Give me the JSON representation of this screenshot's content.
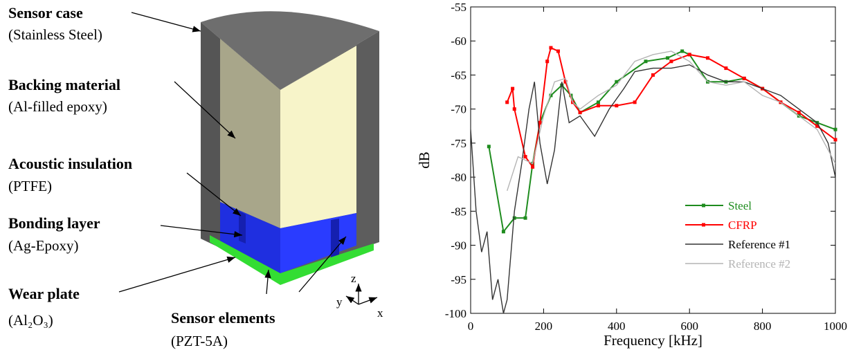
{
  "diagram": {
    "labels": [
      {
        "title": "Sensor case",
        "material": "(Stainless Steel)"
      },
      {
        "title": "Backing material",
        "material": "(Al-filled epoxy)"
      },
      {
        "title": "Acoustic insulation",
        "material": "(PTFE)"
      },
      {
        "title": "Bonding layer",
        "material": "(Ag-Epoxy)"
      },
      {
        "title": "Wear plate",
        "material": "(Al₂O₃)"
      },
      {
        "title": "Sensor elements",
        "material": "(PZT-5A)"
      }
    ],
    "axes": [
      "z",
      "y",
      "x"
    ]
  },
  "chart_data": {
    "type": "line",
    "xlabel": "Frequency [kHz]",
    "ylabel": "dB",
    "xlim": [
      0,
      1000
    ],
    "xticks": [
      0,
      200,
      400,
      600,
      800,
      1000
    ],
    "ylim": [
      -100,
      -55
    ],
    "yticks": [
      -100,
      -95,
      -90,
      -85,
      -80,
      -75,
      -70,
      -65,
      -60,
      -55
    ],
    "series": [
      {
        "name": "Steel",
        "color": "#1e8c1e",
        "markers": true,
        "x": [
          50,
          90,
          120,
          150,
          170,
          190,
          220,
          250,
          275,
          300,
          350,
          400,
          480,
          540,
          580,
          600,
          650,
          700,
          750,
          800,
          850,
          900,
          950,
          1000
        ],
        "values": [
          -75.5,
          -88,
          -86,
          -86,
          -78,
          -72,
          -68,
          -66.5,
          -68,
          -70.5,
          -69,
          -66,
          -63,
          -62.5,
          -61.5,
          -62,
          -66,
          -66,
          -65.5,
          -67,
          -69,
          -71,
          -72,
          -73
        ]
      },
      {
        "name": "CFRP",
        "color": "#ff0000",
        "markers": true,
        "x": [
          100,
          115,
          120,
          150,
          170,
          190,
          210,
          220,
          240,
          260,
          280,
          300,
          350,
          400,
          450,
          500,
          550,
          600,
          650,
          700,
          750,
          800,
          850,
          900,
          950,
          1000
        ],
        "values": [
          -69,
          -67,
          -70,
          -77,
          -78.5,
          -72,
          -63,
          -61,
          -61.5,
          -66,
          -69,
          -70.5,
          -69.5,
          -69.5,
          -69,
          -65,
          -63,
          -62,
          -62.5,
          -64,
          -65.5,
          -67,
          -69,
          -70.5,
          -72.5,
          -74.5
        ]
      },
      {
        "name": "Reference #1",
        "color": "#333333",
        "markers": false,
        "x": [
          0,
          15,
          30,
          45,
          60,
          75,
          90,
          100,
          120,
          140,
          160,
          175,
          190,
          210,
          230,
          250,
          270,
          300,
          340,
          380,
          420,
          450,
          500,
          550,
          600,
          650,
          700,
          750,
          800,
          850,
          900,
          950,
          980,
          1000
        ],
        "values": [
          -73,
          -85,
          -91,
          -88,
          -98,
          -95,
          -100,
          -98,
          -85,
          -78,
          -70,
          -66,
          -75,
          -81,
          -76,
          -66,
          -72,
          -71,
          -74,
          -70,
          -67,
          -64.5,
          -64,
          -64,
          -63.5,
          -65,
          -66,
          -66,
          -67,
          -68,
          -70,
          -72,
          -75,
          -80
        ]
      },
      {
        "name": "Reference #2",
        "color": "#b4b4b4",
        "markers": false,
        "x": [
          100,
          130,
          170,
          200,
          230,
          260,
          280,
          300,
          350,
          400,
          450,
          500,
          550,
          600,
          650,
          700,
          750,
          800,
          850,
          900,
          950,
          1000
        ],
        "values": [
          -82,
          -77,
          -78,
          -71,
          -66,
          -65.5,
          -69,
          -70,
          -68,
          -66.5,
          -63,
          -62,
          -61.5,
          -63,
          -66,
          -66.5,
          -66,
          -68,
          -69,
          -71,
          -73,
          -78
        ]
      }
    ]
  }
}
